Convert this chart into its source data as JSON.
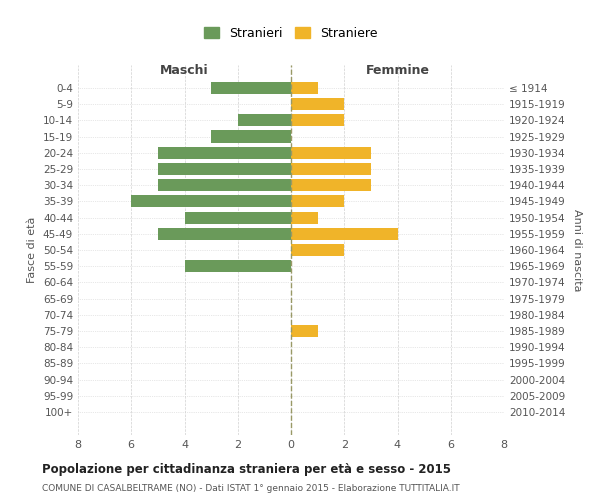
{
  "age_groups": [
    "0-4",
    "5-9",
    "10-14",
    "15-19",
    "20-24",
    "25-29",
    "30-34",
    "35-39",
    "40-44",
    "45-49",
    "50-54",
    "55-59",
    "60-64",
    "65-69",
    "70-74",
    "75-79",
    "80-84",
    "85-89",
    "90-94",
    "95-99",
    "100+"
  ],
  "birth_years": [
    "2010-2014",
    "2005-2009",
    "2000-2004",
    "1995-1999",
    "1990-1994",
    "1985-1989",
    "1980-1984",
    "1975-1979",
    "1970-1974",
    "1965-1969",
    "1960-1964",
    "1955-1959",
    "1950-1954",
    "1945-1949",
    "1940-1944",
    "1935-1939",
    "1930-1934",
    "1925-1929",
    "1920-1924",
    "1915-1919",
    "≤ 1914"
  ],
  "maschi": [
    3,
    0,
    2,
    3,
    5,
    5,
    5,
    6,
    4,
    5,
    0,
    4,
    0,
    0,
    0,
    0,
    0,
    0,
    0,
    0,
    0
  ],
  "femmine": [
    1,
    2,
    2,
    0,
    3,
    3,
    3,
    2,
    1,
    4,
    2,
    0,
    0,
    0,
    0,
    1,
    0,
    0,
    0,
    0,
    0
  ],
  "color_maschi": "#6a9a5a",
  "color_femmine": "#f0b429",
  "title": "Popolazione per cittadinanza straniera per età e sesso - 2015",
  "subtitle": "COMUNE DI CASALBELTRAME (NO) - Dati ISTAT 1° gennaio 2015 - Elaborazione TUTTITALIA.IT",
  "legend_maschi": "Stranieri",
  "legend_femmine": "Straniere",
  "xlabel_left": "Maschi",
  "xlabel_right": "Femmine",
  "ylabel_left": "Fasce di età",
  "ylabel_right": "Anni di nascita",
  "xlim": 8,
  "background_color": "#ffffff",
  "grid_color": "#d0d0d0"
}
